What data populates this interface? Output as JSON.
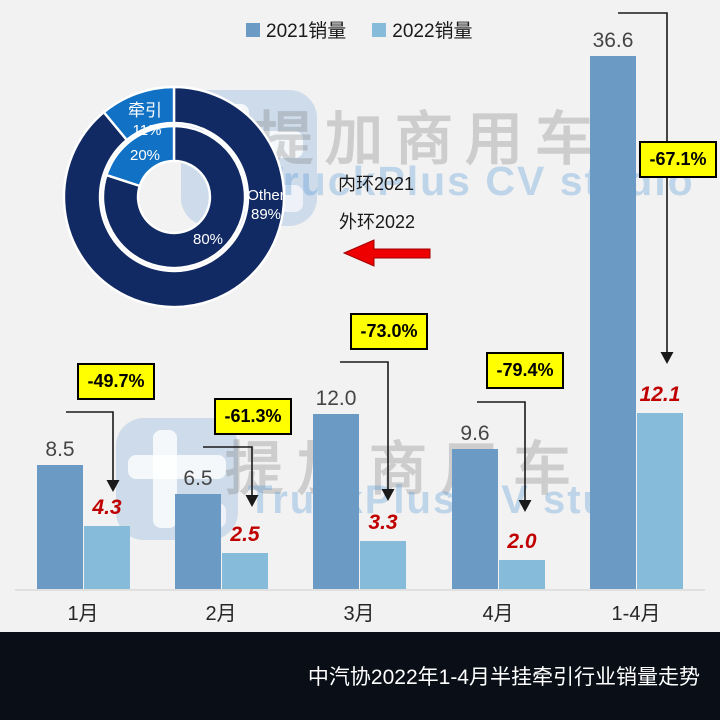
{
  "page": {
    "background": "#f2f2f2"
  },
  "legend": {
    "items": [
      {
        "label": "2021销量",
        "color": "#6b9bc4"
      },
      {
        "label": "2022销量",
        "color": "#86bcd9"
      }
    ]
  },
  "watermark": {
    "cn": "提加商用车",
    "en": "TruckPlus CV studio"
  },
  "footer": {
    "title": "中汽协2022年1-4月半挂牵引行业销量走势",
    "bg": "#0a0e17",
    "text_color": "#ffffff"
  },
  "colors": {
    "bar_2021": "#6b9bc4",
    "bar_2022": "#86bcd9",
    "value_2021": "#454545",
    "value_2022": "#c00000",
    "donut_navy": "#122a63",
    "donut_blue": "#1171c4",
    "badge_bg": "#ffff00",
    "badge_border": "#000000",
    "arrow": "#1a1a1a",
    "red_arrow": "#ee0000",
    "axis_line": "#d9d9d9"
  },
  "chart_data": [
    {
      "type": "bar",
      "title": "中汽协2022年1-4月半挂牵引行业销量走势",
      "categories": [
        "1月",
        "2月",
        "3月",
        "4月",
        "1-4月"
      ],
      "series": [
        {
          "name": "2021销量",
          "values": [
            8.5,
            6.5,
            12.0,
            9.6,
            36.6
          ]
        },
        {
          "name": "2022销量",
          "values": [
            4.3,
            2.5,
            3.3,
            2.0,
            12.1
          ]
        }
      ],
      "change_labels": [
        "-49.7%",
        "-61.3%",
        "-73.0%",
        "-79.4%",
        "-67.1%"
      ],
      "legend_position": "top",
      "y_axis_visible": false,
      "ylim": [
        0,
        38
      ]
    },
    {
      "type": "pie",
      "subtype": "double-donut",
      "annotations": {
        "inner": "内环2021",
        "outer": "外环2022"
      },
      "rings": [
        {
          "name": "2021 inner ring",
          "slices": [
            {
              "label": "牵引",
              "value": 20
            },
            {
              "label": "Other",
              "value": 80
            }
          ]
        },
        {
          "name": "2022 outer ring",
          "slices": [
            {
              "label": "牵引",
              "value": 11
            },
            {
              "label": "Other",
              "value": 89
            }
          ]
        }
      ],
      "display_labels": {
        "series": "牵引",
        "outer_pct": "11%",
        "inner_pct": "20%",
        "inner_other_pct": "80%",
        "other": "Other",
        "outer_other_pct": "89%"
      }
    }
  ]
}
